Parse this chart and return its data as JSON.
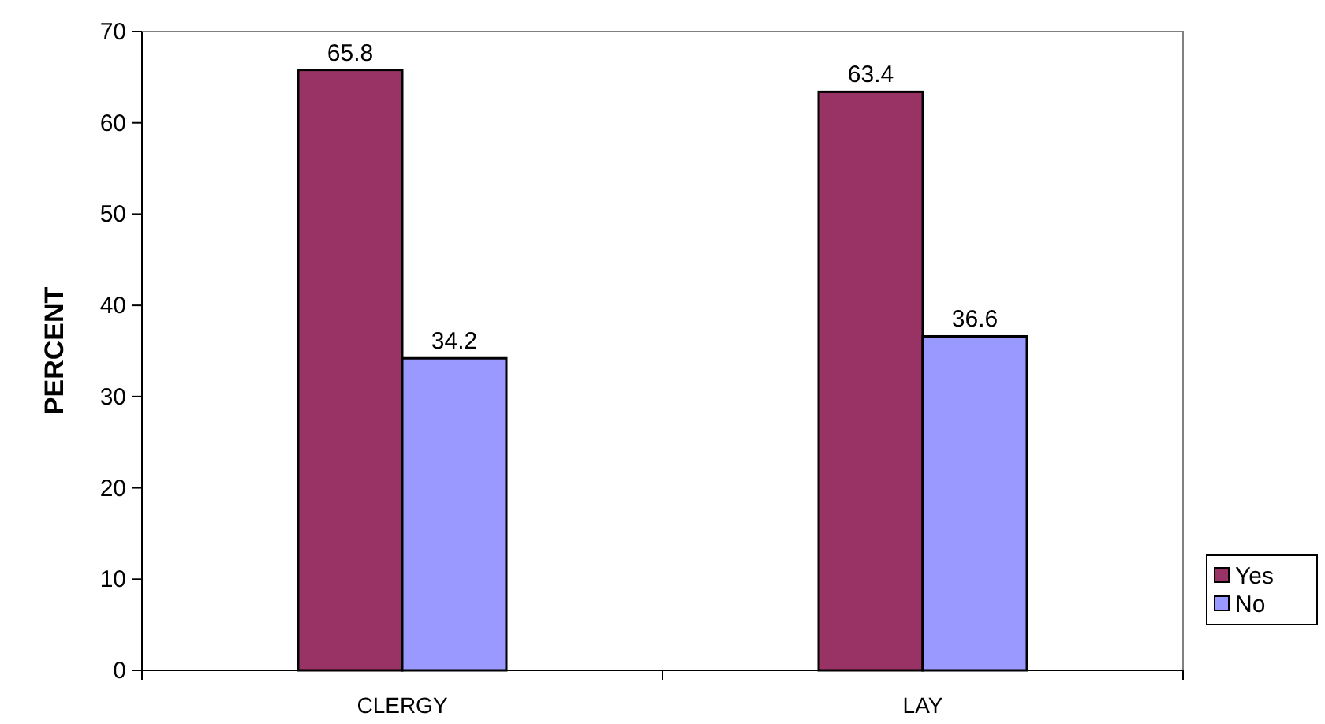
{
  "chart_data": {
    "type": "bar",
    "ylabel": "PERCENT",
    "categories": [
      "CLERGY",
      "LAY"
    ],
    "series": [
      {
        "name": "Yes",
        "color": "#993366",
        "values": [
          65.8,
          63.4
        ]
      },
      {
        "name": "No",
        "color": "#9999ff",
        "values": [
          34.2,
          36.6
        ]
      }
    ],
    "ylim": [
      0,
      70
    ],
    "yticks": [
      0,
      10,
      20,
      30,
      40,
      50,
      60,
      70
    ],
    "data_labels": true,
    "legend": "right",
    "grid": false
  }
}
